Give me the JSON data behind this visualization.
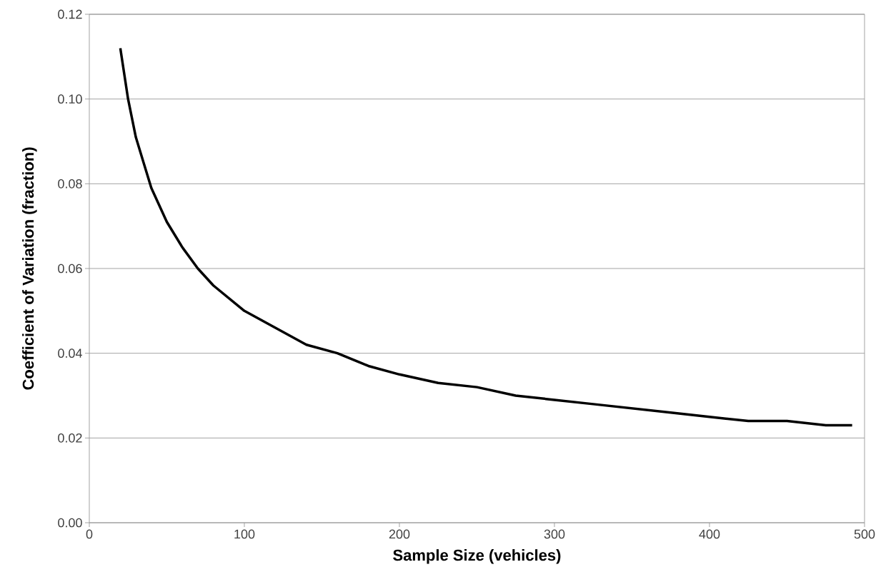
{
  "chart_data": {
    "type": "line",
    "xlabel": "Sample Size (vehicles)",
    "ylabel": "Coefficient of Variation (fraction)",
    "x": [
      20,
      25,
      30,
      35,
      40,
      50,
      60,
      70,
      80,
      90,
      100,
      120,
      140,
      160,
      180,
      200,
      225,
      250,
      275,
      300,
      325,
      350,
      375,
      400,
      425,
      450,
      475,
      492
    ],
    "values": [
      0.112,
      0.1,
      0.091,
      0.085,
      0.079,
      0.071,
      0.065,
      0.06,
      0.056,
      0.053,
      0.05,
      0.046,
      0.042,
      0.04,
      0.037,
      0.035,
      0.033,
      0.032,
      0.03,
      0.029,
      0.028,
      0.027,
      0.026,
      0.025,
      0.024,
      0.024,
      0.023,
      0.023
    ],
    "color": "#000000",
    "xlim": [
      0,
      500
    ],
    "ylim": [
      0,
      0.12
    ],
    "xticks": [
      0,
      100,
      200,
      300,
      400,
      500
    ],
    "yticks": [
      {
        "value": 0,
        "label": "0.00"
      },
      {
        "value": 0.02,
        "label": "0.02"
      },
      {
        "value": 0.04,
        "label": "0.04"
      },
      {
        "value": 0.06,
        "label": "0.06"
      },
      {
        "value": 0.08,
        "label": "0.08"
      },
      {
        "value": 0.1,
        "label": "0.10"
      },
      {
        "value": 0.12,
        "label": "0.12"
      }
    ],
    "grid": "y",
    "marker": "none",
    "line_style": "solid"
  }
}
